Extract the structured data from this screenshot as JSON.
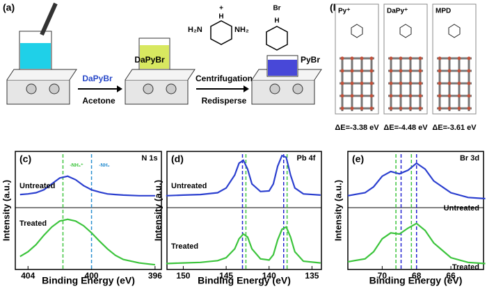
{
  "panel_a": {
    "label": "(a)",
    "reagent": "DaPyBr",
    "solvent": "Acetone",
    "step1": "Centrifugation",
    "step2": "Redisperse",
    "mol1": "DaPyBr",
    "mol2": "PyBr",
    "h2n": "H₂N",
    "nh2": "NH₂",
    "h": "H",
    "plus": "+",
    "br": "Br"
  },
  "panel_b": {
    "label": "(b)",
    "boxes": [
      "Py⁺",
      "DaPy⁺",
      "MPD"
    ],
    "energies": [
      "ΔE=-3.38 eV",
      "ΔE=-4.48 eV",
      "ΔE=-3.61 eV"
    ]
  },
  "chart_data": [
    {
      "type": "line",
      "title": "(c)",
      "xlabel": "Binding Energy (eV)",
      "ylabel": "Intensity (a.u.)",
      "annotations": [
        "N 1s",
        "-NH₃⁺",
        "-NH₂"
      ],
      "x": [
        404.5,
        404,
        403.5,
        403,
        402.5,
        402,
        401.5,
        401,
        400.5,
        400,
        399.5,
        399,
        398.5,
        398,
        397,
        396
      ],
      "series": [
        {
          "name": "Untreated",
          "color": "#2b3fcf",
          "values": [
            1.27,
            1.28,
            1.3,
            1.35,
            1.45,
            1.55,
            1.58,
            1.52,
            1.42,
            1.35,
            1.31,
            1.28,
            1.27,
            1.26,
            1.25,
            1.25
          ]
        },
        {
          "name": "Treated",
          "color": "#3cc43c",
          "values": [
            0.22,
            0.3,
            0.42,
            0.58,
            0.72,
            0.82,
            0.85,
            0.82,
            0.74,
            0.62,
            0.48,
            0.35,
            0.24,
            0.17,
            0.11,
            0.08
          ]
        }
      ],
      "vlines": [
        {
          "x": 401.8,
          "color": "#3cc43c"
        },
        {
          "x": 400,
          "color": "#2a8fd0"
        }
      ],
      "xlim": [
        404.8,
        395.6
      ],
      "xticks": [
        404,
        400,
        396
      ],
      "ylim": [
        0,
        2
      ]
    },
    {
      "type": "line",
      "title": "(d)",
      "xlabel": "Binding Energy (eV)",
      "ylabel": "Intensity (a.u.)",
      "annotations": [
        "Pb 4f"
      ],
      "x": [
        152,
        150,
        148,
        146,
        145,
        144,
        143.5,
        143,
        142.5,
        142,
        141,
        140,
        139.5,
        139,
        138.5,
        138,
        137.5,
        137,
        136,
        134
      ],
      "series": [
        {
          "name": "Untreated",
          "color": "#2b3fcf",
          "values": [
            1.25,
            1.26,
            1.27,
            1.3,
            1.38,
            1.6,
            1.8,
            1.85,
            1.7,
            1.45,
            1.32,
            1.33,
            1.45,
            1.75,
            1.93,
            1.9,
            1.6,
            1.38,
            1.28,
            1.26
          ]
        },
        {
          "name": "Treated",
          "color": "#3cc43c",
          "values": [
            0.1,
            0.11,
            0.12,
            0.15,
            0.2,
            0.35,
            0.52,
            0.6,
            0.55,
            0.35,
            0.18,
            0.16,
            0.25,
            0.5,
            0.68,
            0.72,
            0.55,
            0.3,
            0.14,
            0.11
          ]
        }
      ],
      "vlines": [
        {
          "x": 143.1,
          "color": "#2020d0"
        },
        {
          "x": 138.3,
          "color": "#2020d0"
        },
        {
          "x": 142.7,
          "color": "#3cc43c"
        },
        {
          "x": 137.9,
          "color": "#3cc43c"
        }
      ],
      "xlim": [
        151.9,
        133.9
      ],
      "xticks": [
        150,
        145,
        140,
        135
      ],
      "ylim": [
        0,
        2
      ]
    },
    {
      "type": "line",
      "title": "(e)",
      "xlabel": "Binding Energy (eV)",
      "ylabel": "Intensity (a.u.)",
      "annotations": [
        "Br 3d"
      ],
      "x": [
        72,
        71,
        70.5,
        70,
        69.5,
        69,
        68.5,
        68,
        67.5,
        67,
        66,
        65,
        64
      ],
      "series": [
        {
          "name": "Untreated",
          "color": "#2b3fcf",
          "values": [
            1.25,
            1.3,
            1.4,
            1.58,
            1.66,
            1.62,
            1.68,
            1.8,
            1.7,
            1.5,
            1.3,
            1.22,
            1.2
          ]
        },
        {
          "name": "Treated",
          "color": "#3cc43c",
          "values": [
            0.13,
            0.18,
            0.3,
            0.52,
            0.62,
            0.6,
            0.7,
            0.78,
            0.66,
            0.45,
            0.2,
            0.12,
            0.1
          ]
        }
      ],
      "vlines": [
        {
          "x": 68.9,
          "color": "#2020d0"
        },
        {
          "x": 68,
          "color": "#2020d0"
        },
        {
          "x": 69.2,
          "color": "#3cc43c"
        },
        {
          "x": 68.3,
          "color": "#3cc43c"
        }
      ],
      "xlim": [
        72,
        64.1
      ],
      "xticks": [
        70,
        68,
        66
      ],
      "ylim": [
        0,
        2
      ]
    }
  ]
}
